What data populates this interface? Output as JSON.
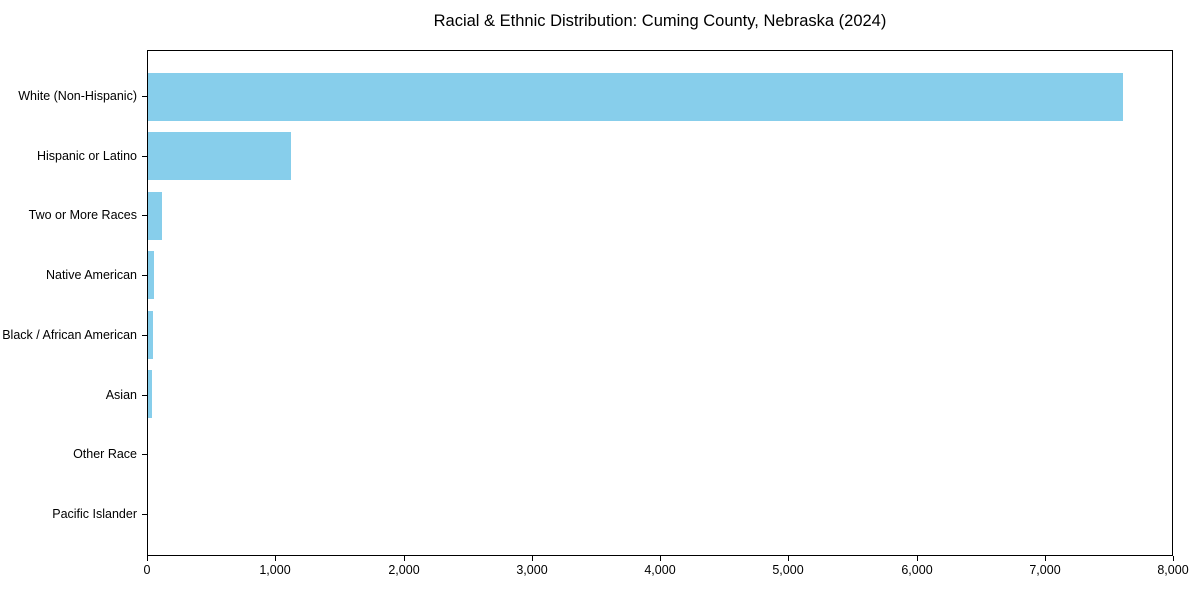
{
  "chart_data": {
    "type": "bar",
    "orientation": "horizontal",
    "title": "Racial & Ethnic Distribution: Cuming County, Nebraska (2024)",
    "categories": [
      "White (Non-Hispanic)",
      "Hispanic or Latino",
      "Two or More Races",
      "Native American",
      "Black / African American",
      "Asian",
      "Other Race",
      "Pacific Islander"
    ],
    "values": [
      7620,
      1120,
      110,
      45,
      36,
      28,
      0,
      0
    ],
    "xlabel": "",
    "ylabel": "",
    "xlim": [
      0,
      8000
    ],
    "x_ticks": [
      0,
      1000,
      2000,
      3000,
      4000,
      5000,
      6000,
      7000,
      8000
    ],
    "x_tick_labels": [
      "0",
      "1,000",
      "2,000",
      "3,000",
      "4,000",
      "5,000",
      "6,000",
      "7,000",
      "8,000"
    ],
    "bar_color": "#87CEEB",
    "axis_color": "#000000",
    "text_color": "#000000",
    "grid": false,
    "legend": "none",
    "categories_order": "top-to-bottom"
  }
}
